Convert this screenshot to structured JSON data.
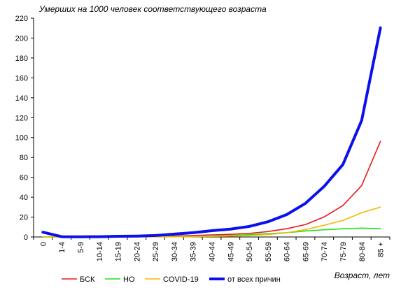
{
  "chart_data": {
    "type": "line",
    "y_caption": "Умерших на 1000 человек соответствующего возраста",
    "x_caption": "Возраст, лет",
    "categories": [
      "0",
      "1-4",
      "5-9",
      "10-14",
      "15-19",
      "20-24",
      "25-29",
      "30-34",
      "35-39",
      "40-44",
      "45-49",
      "50-54",
      "55-59",
      "60-64",
      "65-69",
      "70-74",
      "75-79",
      "80-84",
      "85 +"
    ],
    "ylim": [
      0,
      220
    ],
    "yticks": [
      "0",
      "20",
      "40",
      "60",
      "80",
      "100",
      "120",
      "140",
      "160",
      "180",
      "200",
      "220"
    ],
    "grid": false,
    "legend_position": "bottom",
    "series": [
      {
        "name": "БСК",
        "color": "#e8191c",
        "values": [
          0.1,
          0.1,
          0.1,
          0.1,
          0.2,
          0.3,
          0.5,
          0.9,
          1.5,
          2.1,
          2.7,
          3.6,
          5.5,
          8.3,
          12.5,
          20.2,
          31.7,
          51.7,
          96.2
        ]
      },
      {
        "name": "НО",
        "color": "#19e619",
        "values": [
          0.1,
          0.1,
          0.1,
          0.1,
          0.1,
          0.2,
          0.3,
          0.4,
          0.6,
          0.9,
          1.5,
          2.3,
          3.3,
          4.3,
          6.0,
          7.2,
          8.2,
          8.9,
          8.3
        ]
      },
      {
        "name": "COVID-19",
        "color": "#f5b800",
        "values": [
          0.0,
          0.0,
          0.0,
          0.0,
          0.0,
          0.0,
          0.1,
          0.2,
          0.3,
          0.6,
          0.9,
          1.4,
          2.5,
          4.2,
          7.4,
          11.8,
          16.6,
          24.4,
          30.0
        ]
      },
      {
        "name": "от всех причин",
        "color": "#0a10ee",
        "values": [
          4.8,
          0.3,
          0.2,
          0.3,
          0.7,
          0.9,
          1.5,
          2.9,
          4.3,
          6.3,
          7.9,
          10.6,
          15.3,
          22.5,
          33.8,
          50.9,
          72.9,
          117.2,
          210.3
        ]
      }
    ]
  }
}
